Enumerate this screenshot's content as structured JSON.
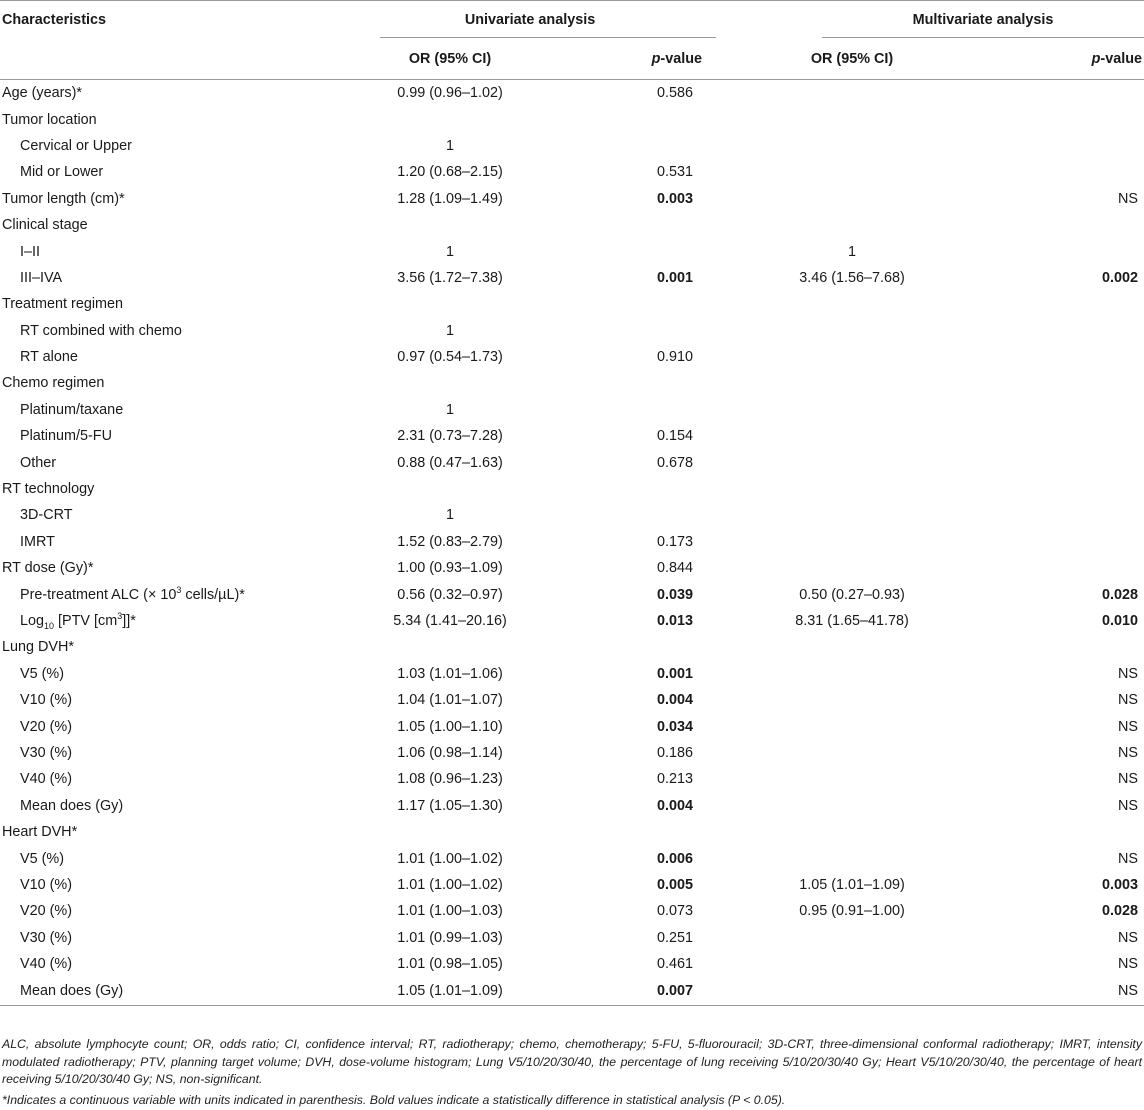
{
  "header": {
    "characteristics": "Characteristics",
    "univariate": "Univariate analysis",
    "multivariate": "Multivariate analysis",
    "or_ci": "OR (95% CI)",
    "p_italic": "p",
    "p_suffix": "-value"
  },
  "rows": [
    {
      "label": "Age (years)*",
      "indent": false,
      "or1": "0.99 (0.96–1.02)",
      "p1": "0.586",
      "p1_bold": false,
      "or2": "",
      "p2": "",
      "p2_bold": false
    },
    {
      "label": "Tumor location",
      "indent": false,
      "or1": "",
      "p1": "",
      "p1_bold": false,
      "or2": "",
      "p2": "",
      "p2_bold": false
    },
    {
      "label": "Cervical or Upper",
      "indent": true,
      "or1": "1",
      "p1": "",
      "p1_bold": false,
      "or2": "",
      "p2": "",
      "p2_bold": false
    },
    {
      "label": "Mid or Lower",
      "indent": true,
      "or1": "1.20 (0.68–2.15)",
      "p1": "0.531",
      "p1_bold": false,
      "or2": "",
      "p2": "",
      "p2_bold": false
    },
    {
      "label": "Tumor length (cm)*",
      "indent": false,
      "or1": "1.28 (1.09–1.49)",
      "p1": "0.003",
      "p1_bold": true,
      "or2": "",
      "p2": "NS",
      "p2_bold": false
    },
    {
      "label": "Clinical stage",
      "indent": false,
      "or1": "",
      "p1": "",
      "p1_bold": false,
      "or2": "",
      "p2": "",
      "p2_bold": false
    },
    {
      "label": "I–II",
      "indent": true,
      "or1": "1",
      "p1": "",
      "p1_bold": false,
      "or2": "1",
      "p2": "",
      "p2_bold": false
    },
    {
      "label": "III–IVA",
      "indent": true,
      "or1": "3.56 (1.72–7.38)",
      "p1": "0.001",
      "p1_bold": true,
      "or2": "3.46 (1.56–7.68)",
      "p2": "0.002",
      "p2_bold": true
    },
    {
      "label": "Treatment regimen",
      "indent": false,
      "or1": "",
      "p1": "",
      "p1_bold": false,
      "or2": "",
      "p2": "",
      "p2_bold": false
    },
    {
      "label": "RT combined with chemo",
      "indent": true,
      "or1": "1",
      "p1": "",
      "p1_bold": false,
      "or2": "",
      "p2": "",
      "p2_bold": false
    },
    {
      "label": "RT alone",
      "indent": true,
      "or1": "0.97 (0.54–1.73)",
      "p1": "0.910",
      "p1_bold": false,
      "or2": "",
      "p2": "",
      "p2_bold": false
    },
    {
      "label": "Chemo regimen",
      "indent": false,
      "or1": "",
      "p1": "",
      "p1_bold": false,
      "or2": "",
      "p2": "",
      "p2_bold": false
    },
    {
      "label": "Platinum/taxane",
      "indent": true,
      "or1": "1",
      "p1": "",
      "p1_bold": false,
      "or2": "",
      "p2": "",
      "p2_bold": false
    },
    {
      "label": "Platinum/5-FU",
      "indent": true,
      "or1": "2.31 (0.73–7.28)",
      "p1": "0.154",
      "p1_bold": false,
      "or2": "",
      "p2": "",
      "p2_bold": false
    },
    {
      "label": "Other",
      "indent": true,
      "or1": "0.88 (0.47–1.63)",
      "p1": "0.678",
      "p1_bold": false,
      "or2": "",
      "p2": "",
      "p2_bold": false
    },
    {
      "label": "RT technology",
      "indent": false,
      "or1": "",
      "p1": "",
      "p1_bold": false,
      "or2": "",
      "p2": "",
      "p2_bold": false
    },
    {
      "label": "3D-CRT",
      "indent": true,
      "or1": "1",
      "p1": "",
      "p1_bold": false,
      "or2": "",
      "p2": "",
      "p2_bold": false
    },
    {
      "label": "IMRT",
      "indent": true,
      "or1": "1.52 (0.83–2.79)",
      "p1": "0.173",
      "p1_bold": false,
      "or2": "",
      "p2": "",
      "p2_bold": false
    },
    {
      "label": "RT dose (Gy)*",
      "indent": false,
      "or1": "1.00 (0.93–1.09)",
      "p1": "0.844",
      "p1_bold": false,
      "or2": "",
      "p2": "",
      "p2_bold": false
    },
    {
      "label": "Pre-treatment ALC (× 10^3 cells/µL)*",
      "indent": true,
      "or1": "0.56 (0.32–0.97)",
      "p1": "0.039",
      "p1_bold": true,
      "or2": "0.50 (0.27–0.93)",
      "p2": "0.028",
      "p2_bold": true
    },
    {
      "label": "Log10 [PTV [cm3]]*",
      "indent": true,
      "or1": "5.34 (1.41–20.16)",
      "p1": "0.013",
      "p1_bold": true,
      "or2": "8.31 (1.65–41.78)",
      "p2": "0.010",
      "p2_bold": true
    },
    {
      "label": "Lung DVH*",
      "indent": false,
      "or1": "",
      "p1": "",
      "p1_bold": false,
      "or2": "",
      "p2": "",
      "p2_bold": false
    },
    {
      "label": "V5 (%)",
      "indent": true,
      "or1": "1.03 (1.01–1.06)",
      "p1": "0.001",
      "p1_bold": true,
      "or2": "",
      "p2": "NS",
      "p2_bold": false
    },
    {
      "label": "V10 (%)",
      "indent": true,
      "or1": "1.04 (1.01–1.07)",
      "p1": "0.004",
      "p1_bold": true,
      "or2": "",
      "p2": "NS",
      "p2_bold": false
    },
    {
      "label": "V20 (%)",
      "indent": true,
      "or1": "1.05 (1.00–1.10)",
      "p1": "0.034",
      "p1_bold": true,
      "or2": "",
      "p2": "NS",
      "p2_bold": false
    },
    {
      "label": "V30 (%)",
      "indent": true,
      "or1": "1.06 (0.98–1.14)",
      "p1": "0.186",
      "p1_bold": false,
      "or2": "",
      "p2": "NS",
      "p2_bold": false
    },
    {
      "label": "V40 (%)",
      "indent": true,
      "or1": "1.08 (0.96–1.23)",
      "p1": "0.213",
      "p1_bold": false,
      "or2": "",
      "p2": "NS",
      "p2_bold": false
    },
    {
      "label": "Mean does (Gy)",
      "indent": true,
      "or1": "1.17 (1.05–1.30)",
      "p1": "0.004",
      "p1_bold": true,
      "or2": "",
      "p2": "NS",
      "p2_bold": false
    },
    {
      "label": "Heart DVH*",
      "indent": false,
      "or1": "",
      "p1": "",
      "p1_bold": false,
      "or2": "",
      "p2": "",
      "p2_bold": false
    },
    {
      "label": "V5 (%)",
      "indent": true,
      "or1": "1.01 (1.00–1.02)",
      "p1": "0.006",
      "p1_bold": true,
      "or2": "",
      "p2": "NS",
      "p2_bold": false
    },
    {
      "label": "V10 (%)",
      "indent": true,
      "or1": "1.01 (1.00–1.02)",
      "p1": "0.005",
      "p1_bold": true,
      "or2": "1.05 (1.01–1.09)",
      "p2": "0.003",
      "p2_bold": true
    },
    {
      "label": "V20 (%)",
      "indent": true,
      "or1": "1.01 (1.00–1.03)",
      "p1": "0.073",
      "p1_bold": false,
      "or2": "0.95 (0.91–1.00)",
      "p2": "0.028",
      "p2_bold": true
    },
    {
      "label": "V30 (%)",
      "indent": true,
      "or1": "1.01 (0.99–1.03)",
      "p1": "0.251",
      "p1_bold": false,
      "or2": "",
      "p2": "NS",
      "p2_bold": false
    },
    {
      "label": "V40 (%)",
      "indent": true,
      "or1": "1.01 (0.98–1.05)",
      "p1": "0.461",
      "p1_bold": false,
      "or2": "",
      "p2": "NS",
      "p2_bold": false
    },
    {
      "label": "Mean does (Gy)",
      "indent": true,
      "or1": "1.05 (1.01–1.09)",
      "p1": "0.007",
      "p1_bold": true,
      "or2": "",
      "p2": "NS",
      "p2_bold": false
    }
  ],
  "footnotes": {
    "abbreviations": "ALC, absolute lymphocyte count; OR, odds ratio; CI, confidence interval; RT, radiotherapy; chemo, chemotherapy; 5-FU, 5-fluorouracil; 3D-CRT, three-dimensional conformal radiotherapy; IMRT, intensity modulated radiotherapy; PTV, planning target volume; DVH, dose-volume histogram; Lung V5/10/20/30/40, the percentage of lung receiving 5/10/20/30/40 Gy; Heart V5/10/20/30/40, the percentage of heart receiving 5/10/20/30/40 Gy; NS, non-significant.",
    "note": "*Indicates a continuous variable with units indicated in parenthesis. Bold values indicate a statistically difference in statistical analysis (P < 0.05)."
  }
}
